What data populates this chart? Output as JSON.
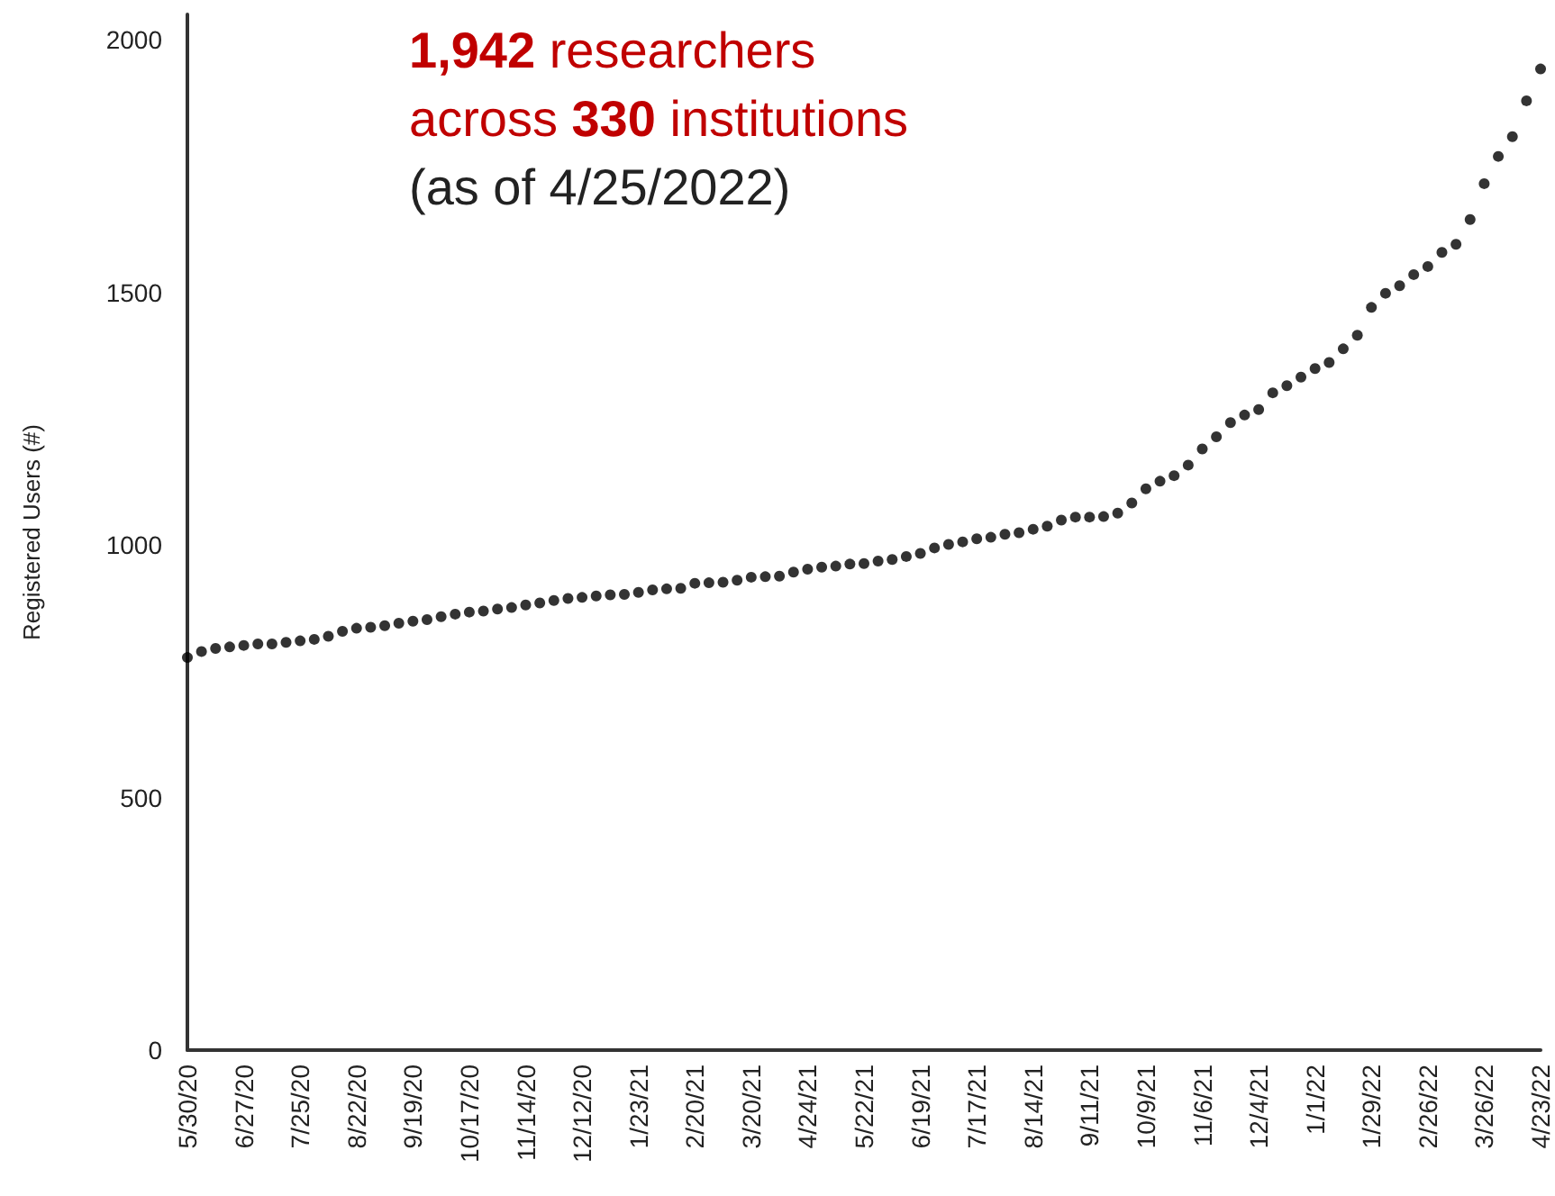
{
  "chart_data": {
    "type": "scatter",
    "ylabel": "Registered Users (#)",
    "annotations": [
      "1,942 researchers",
      "across 330 institutions",
      "(as of 4/25/2022)"
    ],
    "categories": [
      "5/30/20",
      null,
      null,
      null,
      "6/27/20",
      null,
      null,
      null,
      "7/25/20",
      null,
      null,
      null,
      "8/22/20",
      null,
      null,
      null,
      "9/19/20",
      null,
      null,
      null,
      "10/17/20",
      null,
      null,
      null,
      "11/14/20",
      null,
      null,
      null,
      "12/12/20",
      null,
      null,
      null,
      "1/23/21",
      null,
      null,
      null,
      "2/20/21",
      null,
      null,
      null,
      "3/20/21",
      null,
      null,
      null,
      "4/24/21",
      null,
      null,
      null,
      "5/22/21",
      null,
      null,
      null,
      "6/19/21",
      null,
      null,
      null,
      "7/17/21",
      null,
      null,
      null,
      "8/14/21",
      null,
      null,
      null,
      "9/11/21",
      null,
      null,
      null,
      "10/9/21",
      null,
      null,
      null,
      "11/6/21",
      null,
      null,
      null,
      "12/4/21",
      null,
      null,
      null,
      "1/1/22",
      null,
      null,
      null,
      "1/29/22",
      null,
      null,
      null,
      "2/26/22",
      null,
      null,
      null,
      "3/26/22",
      null,
      null,
      null,
      "4/23/22"
    ],
    "series": [
      {
        "color": "#000000",
        "values": [
          777,
          789,
          795,
          798,
          801,
          804,
          804,
          807,
          810,
          813,
          819,
          829,
          835,
          837,
          840,
          845,
          849,
          852,
          858,
          863,
          867,
          869,
          873,
          876,
          881,
          885,
          890,
          894,
          896,
          899,
          901,
          902,
          906,
          911,
          913,
          914,
          924,
          925,
          926,
          930,
          936,
          937,
          938,
          946,
          952,
          956,
          958,
          962,
          963,
          968,
          971,
          977,
          983,
          994,
          1001,
          1006,
          1012,
          1015,
          1021,
          1024,
          1031,
          1037,
          1049,
          1055,
          1055,
          1056,
          1063,
          1083,
          1111,
          1126,
          1137,
          1158,
          1190,
          1214,
          1242,
          1257,
          1268,
          1301,
          1315,
          1332,
          1349,
          1361,
          1388,
          1415,
          1470,
          1498,
          1513,
          1535,
          1551,
          1579,
          1595,
          1644,
          1715,
          1769,
          1808,
          1879,
          1942
        ]
      }
    ],
    "ylim": [
      0,
      2050
    ],
    "yticks": [
      0,
      500,
      1000,
      1500,
      2000
    ],
    "grid": false,
    "marker": "circle"
  }
}
